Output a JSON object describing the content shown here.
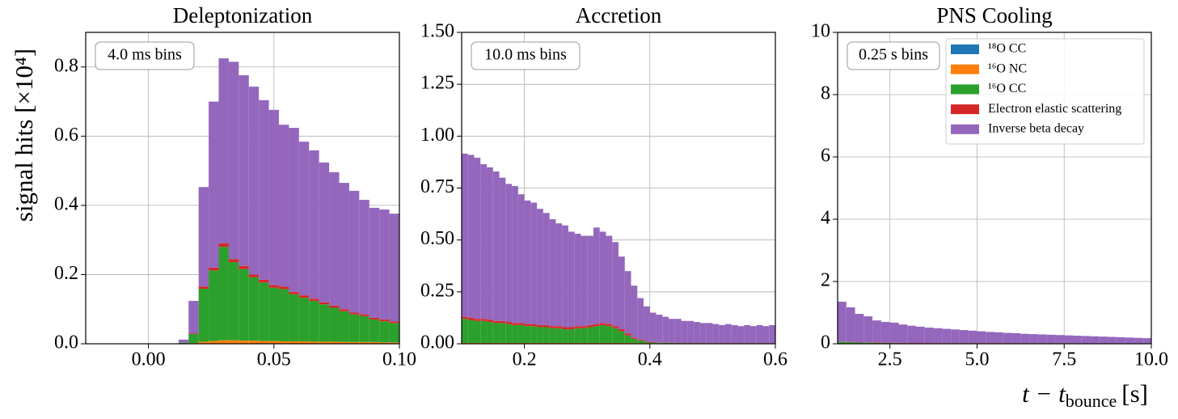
{
  "chart_data": [
    {
      "type": "histogram",
      "title": "Deleptonization",
      "ylabel": "signal hits [×10⁴]",
      "annotation": "4.0 ms bins",
      "xlim": [
        -0.025,
        0.1
      ],
      "ylim": [
        0,
        0.9
      ],
      "xticks": [
        {
          "value": 0,
          "label": "0.00"
        },
        {
          "value": 0.05,
          "label": "0.05"
        },
        {
          "value": 0.1,
          "label": "0.10"
        }
      ],
      "yticks": [
        {
          "value": 0,
          "label": "0.0"
        },
        0.2,
        0.4,
        0.6,
        0.8
      ],
      "grid": true,
      "bins": [
        0.012,
        0.016,
        0.02,
        0.024,
        0.028,
        0.032,
        0.036,
        0.04,
        0.044,
        0.048,
        0.052,
        0.056,
        0.06,
        0.064,
        0.068,
        0.072,
        0.076,
        0.08,
        0.084,
        0.088,
        0.092,
        0.096,
        0.1
      ],
      "series": [
        {
          "color": "#1f77b4",
          "values": [
            0,
            0,
            0,
            0,
            0,
            0,
            0,
            0,
            0,
            0,
            0,
            0,
            0,
            0,
            0,
            0,
            0,
            0,
            0,
            0,
            0,
            0
          ]
        },
        {
          "color": "#ff7f0e",
          "values": [
            0,
            0.002,
            0.006,
            0.008,
            0.01,
            0.01,
            0.009,
            0.009,
            0.008,
            0.008,
            0.007,
            0.007,
            0.007,
            0.006,
            0.006,
            0.006,
            0.005,
            0.005,
            0.005,
            0.005,
            0.004,
            0.004
          ]
        },
        {
          "color": "#2ca02c",
          "values": [
            0.003,
            0.026,
            0.153,
            0.204,
            0.27,
            0.226,
            0.207,
            0.183,
            0.169,
            0.154,
            0.151,
            0.136,
            0.126,
            0.118,
            0.108,
            0.098,
            0.089,
            0.08,
            0.075,
            0.065,
            0.061,
            0.056
          ]
        },
        {
          "color": "#d62728",
          "values": [
            0,
            0.002,
            0.006,
            0.008,
            0.01,
            0.009,
            0.009,
            0.008,
            0.008,
            0.008,
            0.007,
            0.007,
            0.007,
            0.006,
            0.006,
            0.006,
            0.006,
            0.005,
            0.005,
            0.005,
            0.005,
            0.005
          ]
        },
        {
          "color": "#9467bd",
          "values": [
            0.009,
            0.094,
            0.288,
            0.48,
            0.535,
            0.57,
            0.551,
            0.543,
            0.519,
            0.506,
            0.468,
            0.474,
            0.444,
            0.429,
            0.404,
            0.386,
            0.365,
            0.352,
            0.331,
            0.318,
            0.318,
            0.311
          ]
        }
      ]
    },
    {
      "type": "histogram",
      "title": "Accretion",
      "annotation": "10.0 ms bins",
      "xlim": [
        0.1,
        0.6
      ],
      "ylim": [
        0,
        1.5
      ],
      "xticks": [
        0.2,
        0.4,
        0.6
      ],
      "yticks": [
        {
          "value": 0,
          "label": "0.00"
        },
        0.25,
        {
          "value": 0.5,
          "label": "0.50"
        },
        0.75,
        {
          "value": 1,
          "label": "1.00"
        },
        1.25,
        {
          "value": 1.5,
          "label": "1.50"
        }
      ],
      "grid": true,
      "bins": [
        0.1,
        0.11,
        0.12,
        0.13,
        0.14,
        0.15,
        0.16,
        0.17,
        0.18,
        0.19,
        0.2,
        0.21,
        0.22,
        0.23,
        0.24,
        0.25,
        0.26,
        0.27,
        0.28,
        0.29,
        0.3,
        0.31,
        0.32,
        0.33,
        0.34,
        0.35,
        0.36,
        0.37,
        0.38,
        0.39,
        0.4,
        0.41,
        0.42,
        0.43,
        0.44,
        0.45,
        0.46,
        0.47,
        0.48,
        0.49,
        0.5,
        0.51,
        0.52,
        0.53,
        0.54,
        0.55,
        0.56,
        0.57,
        0.58,
        0.59,
        0.6
      ],
      "series": [
        {
          "color": "#1f77b4",
          "values": [
            0,
            0,
            0,
            0,
            0,
            0,
            0,
            0,
            0,
            0,
            0,
            0,
            0,
            0,
            0,
            0,
            0,
            0,
            0,
            0,
            0,
            0,
            0,
            0,
            0,
            0,
            0,
            0,
            0,
            0,
            0,
            0,
            0,
            0,
            0,
            0,
            0,
            0,
            0,
            0,
            0,
            0,
            0,
            0,
            0,
            0,
            0,
            0,
            0,
            0
          ]
        },
        {
          "color": "#ff7f0e",
          "values": [
            0.004,
            0.004,
            0.004,
            0.004,
            0.004,
            0.004,
            0.004,
            0.004,
            0.004,
            0.004,
            0.004,
            0.004,
            0.004,
            0.004,
            0.004,
            0.004,
            0.004,
            0.004,
            0.004,
            0.004,
            0.004,
            0.004,
            0.004,
            0.004,
            0.004,
            0.004,
            0.004,
            0.004,
            0.003,
            0.003,
            0.003,
            0.003,
            0.002,
            0.002,
            0.002,
            0.002,
            0.002,
            0.002,
            0.002,
            0.002,
            0.002,
            0.002,
            0.002,
            0.002,
            0.002,
            0.002,
            0.002,
            0.002,
            0.002,
            0.002
          ]
        },
        {
          "color": "#2ca02c",
          "values": [
            0.116,
            0.111,
            0.106,
            0.106,
            0.101,
            0.096,
            0.096,
            0.091,
            0.086,
            0.086,
            0.081,
            0.081,
            0.076,
            0.076,
            0.071,
            0.071,
            0.066,
            0.066,
            0.071,
            0.071,
            0.076,
            0.081,
            0.086,
            0.081,
            0.071,
            0.056,
            0.036,
            0.02,
            0.013,
            0.006,
            0.003,
            0.002,
            0.002,
            0.002,
            0.001,
            0.001,
            0.001,
            0.001,
            0.001,
            0,
            0,
            0,
            0,
            0,
            0,
            0,
            0,
            0,
            0,
            0
          ]
        },
        {
          "color": "#d62728",
          "values": [
            0.01,
            0.01,
            0.01,
            0.01,
            0.01,
            0.01,
            0.01,
            0.01,
            0.01,
            0.01,
            0.01,
            0.01,
            0.01,
            0.01,
            0.01,
            0.01,
            0.01,
            0.01,
            0.01,
            0.01,
            0.01,
            0.01,
            0.01,
            0.01,
            0.01,
            0.01,
            0.01,
            0.006,
            0.004,
            0.003,
            0.002,
            0.001,
            0.001,
            0.001,
            0.001,
            0.001,
            0.001,
            0.001,
            0.001,
            0.001,
            0.001,
            0.001,
            0.001,
            0.001,
            0.001,
            0.001,
            0.001,
            0.001,
            0.001,
            0.001
          ]
        },
        {
          "color": "#9467bd",
          "values": [
            0.786,
            0.785,
            0.776,
            0.745,
            0.735,
            0.72,
            0.69,
            0.665,
            0.66,
            0.62,
            0.595,
            0.585,
            0.56,
            0.54,
            0.515,
            0.495,
            0.49,
            0.46,
            0.445,
            0.435,
            0.43,
            0.465,
            0.44,
            0.425,
            0.405,
            0.35,
            0.3,
            0.25,
            0.2,
            0.168,
            0.142,
            0.134,
            0.125,
            0.115,
            0.116,
            0.106,
            0.106,
            0.101,
            0.096,
            0.097,
            0.092,
            0.087,
            0.092,
            0.087,
            0.082,
            0.087,
            0.082,
            0.087,
            0.082,
            0.087
          ]
        }
      ]
    },
    {
      "type": "histogram",
      "title": "PNS Cooling",
      "annotation": "0.25 s bins",
      "xlabel": "t − t",
      "xlabel_sub": "bounce",
      "xlabel_unit": "[s]",
      "xlim": [
        1,
        10
      ],
      "ylim": [
        0,
        10
      ],
      "xticks": [
        2.5,
        {
          "value": 5,
          "label": "5.0"
        },
        7.5,
        {
          "value": 10,
          "label": "10.0"
        }
      ],
      "yticks": [
        0,
        2,
        4,
        6,
        8,
        10
      ],
      "grid": true,
      "bins": [
        1,
        1.25,
        1.5,
        1.75,
        2,
        2.25,
        2.5,
        2.75,
        3,
        3.25,
        3.5,
        3.75,
        4,
        4.25,
        4.5,
        4.75,
        5,
        5.25,
        5.5,
        5.75,
        6,
        6.25,
        6.5,
        6.75,
        7,
        7.25,
        7.5,
        7.75,
        8,
        8.25,
        8.5,
        8.75,
        9,
        9.25,
        9.5,
        9.75,
        10
      ],
      "series": [
        {
          "name": "¹⁸O CC",
          "color": "#1f77b4",
          "values": [
            0,
            0,
            0,
            0,
            0,
            0,
            0,
            0,
            0,
            0,
            0,
            0,
            0,
            0,
            0,
            0,
            0,
            0,
            0,
            0,
            0,
            0,
            0,
            0,
            0,
            0,
            0,
            0,
            0,
            0,
            0,
            0,
            0,
            0,
            0,
            0
          ]
        },
        {
          "name": "¹⁶O NC",
          "color": "#ff7f0e",
          "values": [
            0,
            0,
            0,
            0,
            0,
            0,
            0,
            0,
            0,
            0,
            0,
            0,
            0,
            0,
            0,
            0,
            0,
            0,
            0,
            0,
            0,
            0,
            0,
            0,
            0,
            0,
            0,
            0,
            0,
            0,
            0,
            0,
            0,
            0,
            0,
            0
          ]
        },
        {
          "name": "¹⁶O CC",
          "color": "#2ca02c",
          "values": [
            0.06,
            0.05,
            0.04,
            0.035,
            0.03,
            0.025,
            0.02,
            0.018,
            0.015,
            0.013,
            0.012,
            0.01,
            0.01,
            0.01,
            0.01,
            0.01,
            0.01,
            0.01,
            0.01,
            0.01,
            0.008,
            0.008,
            0.008,
            0.008,
            0.008,
            0.008,
            0.008,
            0.008,
            0.006,
            0.006,
            0.006,
            0.006,
            0.006,
            0.006,
            0.006,
            0.006
          ]
        },
        {
          "name": "Electron elastic scattering",
          "color": "#d62728",
          "values": [
            0.01,
            0.01,
            0.01,
            0.01,
            0.01,
            0.01,
            0.01,
            0.01,
            0.01,
            0.01,
            0.01,
            0.01,
            0.01,
            0.01,
            0.01,
            0.01,
            0.01,
            0.01,
            0.01,
            0.01,
            0.01,
            0.01,
            0.01,
            0.01,
            0.01,
            0.01,
            0.01,
            0.01,
            0.01,
            0.01,
            0.01,
            0.01,
            0.01,
            0.01,
            0.01,
            0.01
          ]
        },
        {
          "name": "Inverse beta decay",
          "color": "#9467bd",
          "values": [
            1.28,
            1.11,
            0.91,
            0.835,
            0.71,
            0.665,
            0.65,
            0.592,
            0.555,
            0.527,
            0.498,
            0.48,
            0.46,
            0.44,
            0.42,
            0.4,
            0.38,
            0.36,
            0.35,
            0.33,
            0.322,
            0.302,
            0.292,
            0.282,
            0.272,
            0.262,
            0.252,
            0.242,
            0.234,
            0.224,
            0.214,
            0.204,
            0.194,
            0.184,
            0.174,
            0.164
          ]
        }
      ]
    }
  ]
}
